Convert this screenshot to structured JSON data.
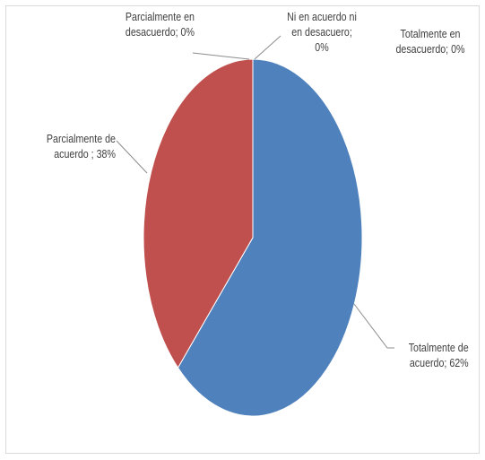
{
  "chart_data": {
    "type": "pie",
    "slices": [
      {
        "label": "Totalmente de acuerdo",
        "value": 62,
        "color": "#4f81bd",
        "text": "Totalmente de\nacuerdo; 62%"
      },
      {
        "label": "Parcialmente de acuerdo",
        "value": 38,
        "color": "#c0504d",
        "text": "Parcialmente de\nacuerdo ; 38%"
      },
      {
        "label": "Parcialmente en desacuerdo",
        "value": 0,
        "color": "#9bbb59",
        "text": "Parcialmente en\ndesacuerdo; 0%"
      },
      {
        "label": "Ni en acuerdo ni en desacuero",
        "value": 0,
        "color": "#8064a2",
        "text": "Ni en acuerdo ni\nen desacuero;\n0%"
      },
      {
        "label": "Totalmente en desacuerdo",
        "value": 0,
        "color": "#4bacc6",
        "text": "Totalmente en\ndesacuerdo; 0%"
      }
    ],
    "legend": "none",
    "start_angle_deg": 0,
    "direction": "clockwise"
  }
}
